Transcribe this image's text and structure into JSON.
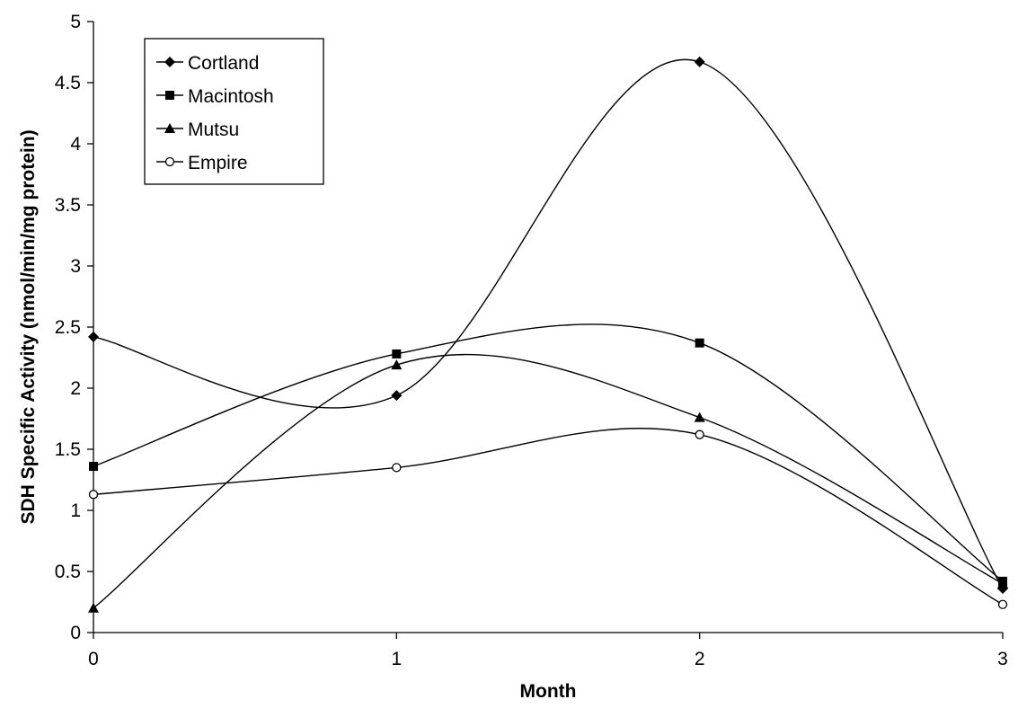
{
  "chart_data": {
    "type": "line",
    "title": "",
    "xlabel": "Month",
    "ylabel": "SDH Specific Activity (nmol/min/mg protein)",
    "x": [
      0,
      1,
      2,
      3
    ],
    "xlim": [
      0,
      3
    ],
    "ylim": [
      0,
      5
    ],
    "x_ticks": [
      "0",
      "1",
      "2",
      "3"
    ],
    "y_ticks": [
      "0",
      "0.5",
      "1",
      "1.5",
      "2",
      "2.5",
      "3",
      "3.5",
      "4",
      "4.5",
      "5"
    ],
    "grid": false,
    "smooth": true,
    "legend_position": "top-left",
    "series": [
      {
        "name": "Cortland",
        "marker": "diamond",
        "values": [
          2.42,
          1.94,
          4.67,
          0.36
        ]
      },
      {
        "name": "Macintosh",
        "marker": "square",
        "values": [
          1.36,
          2.28,
          2.37,
          0.42
        ]
      },
      {
        "name": "Mutsu",
        "marker": "triangle",
        "values": [
          0.2,
          2.19,
          1.76,
          0.4
        ]
      },
      {
        "name": "Empire",
        "marker": "circle",
        "values": [
          1.13,
          1.35,
          1.62,
          0.23
        ]
      }
    ],
    "colors": {
      "line": "#000000",
      "background": "#ffffff"
    }
  }
}
